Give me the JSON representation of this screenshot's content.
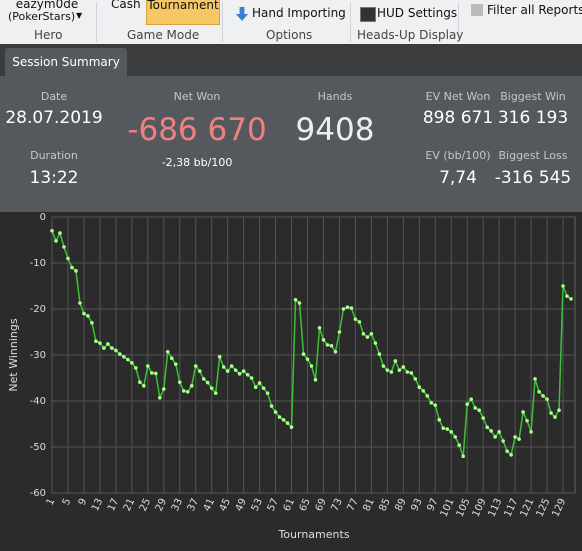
{
  "toolbar": {
    "hero_name": "eazym0de",
    "hero_site": "(PokerStars)",
    "cash": "Cash",
    "tournament": "Tournament",
    "hand_importing": "Hand Importing",
    "hud_settings": "HUD Settings",
    "filter": "Filter all Reports to",
    "groups": [
      "Hero",
      "Game Mode",
      "Options",
      "Heads-Up Display"
    ]
  },
  "tab": "Session Summary",
  "summary": {
    "date_label": "Date",
    "date": "28.07.2019",
    "duration_label": "Duration",
    "duration": "13:22",
    "net_won_label": "Net Won",
    "net_won": "-686 670",
    "bb100": "-2,38 bb/100",
    "hands_label": "Hands",
    "hands": "9408",
    "ev_net_won_label": "EV Net Won",
    "ev_net_won": "898 671",
    "biggest_win_label": "Biggest Win",
    "biggest_win": "316 193",
    "ev_bb100_label": "EV (bb/100)",
    "ev_bb100": "7,74",
    "biggest_loss_label": "Biggest Loss",
    "biggest_loss": "-316 545"
  },
  "chart_data": {
    "type": "line",
    "x_label": "Tournaments",
    "y_label": "Net Winnings",
    "color": "#3fbf3a",
    "marker_color": "#a8ff8a",
    "grid": true,
    "xlim": [
      1,
      132
    ],
    "ylim": [
      -60,
      0
    ],
    "xticks": [
      1,
      5,
      9,
      13,
      17,
      21,
      25,
      29,
      33,
      37,
      41,
      45,
      49,
      53,
      57,
      61,
      65,
      69,
      73,
      77,
      81,
      85,
      89,
      93,
      97,
      101,
      105,
      109,
      113,
      117,
      121,
      125,
      129
    ],
    "yticks": [
      -60,
      -50,
      -40,
      -30,
      -20,
      -10,
      0
    ],
    "x": [
      1,
      2,
      3,
      4,
      5,
      6,
      7,
      8,
      9,
      10,
      11,
      12,
      13,
      14,
      15,
      16,
      17,
      18,
      19,
      20,
      21,
      22,
      23,
      24,
      25,
      26,
      27,
      28,
      29,
      30,
      31,
      32,
      33,
      34,
      35,
      36,
      37,
      38,
      39,
      40,
      41,
      42,
      43,
      44,
      45,
      46,
      47,
      48,
      49,
      50,
      51,
      52,
      53,
      54,
      55,
      56,
      57,
      58,
      59,
      60,
      61,
      62,
      63,
      64,
      65,
      66,
      67,
      68,
      69,
      70,
      71,
      72,
      73,
      74,
      75,
      76,
      77,
      78,
      79,
      80,
      81,
      82,
      83,
      84,
      85,
      86,
      87,
      88,
      89,
      90,
      91,
      92,
      93,
      94,
      95,
      96,
      97,
      98,
      99,
      100,
      101,
      102,
      103,
      104,
      105,
      106,
      107,
      108,
      109,
      110,
      111,
      112,
      113,
      114,
      115,
      116,
      117,
      118,
      119,
      120,
      121,
      122,
      123,
      124,
      125,
      126,
      127,
      128,
      129,
      130,
      131
    ],
    "series": [
      {
        "name": "Net Winnings",
        "values": [
          -3,
          -5.2,
          -3.5,
          -6.5,
          -9,
          -11,
          -11.7,
          -18.7,
          -21,
          -21.5,
          -23,
          -27,
          -27.4,
          -28.5,
          -27.6,
          -28.5,
          -29,
          -29.8,
          -30.4,
          -31,
          -31.7,
          -32.8,
          -35.9,
          -36.7,
          -32.4,
          -33.9,
          -34,
          -39.3,
          -37.4,
          -29.3,
          -30.7,
          -32,
          -35.9,
          -37.8,
          -38,
          -36.7,
          -32.4,
          -33.5,
          -35.2,
          -36,
          -37.2,
          -38.3,
          -30.4,
          -32.6,
          -33.5,
          -32.4,
          -33.3,
          -34.1,
          -33.5,
          -34.3,
          -35,
          -37,
          -36.1,
          -37.2,
          -38.3,
          -41.1,
          -42.4,
          -43.5,
          -44.1,
          -44.8,
          -45.7,
          -18,
          -18.7,
          -29.8,
          -30.9,
          -32.4,
          -35.4,
          -24.1,
          -26.7,
          -27.8,
          -28,
          -29.3,
          -25,
          -20,
          -19.6,
          -19.8,
          -22.2,
          -22.8,
          -25.4,
          -26.1,
          -25.4,
          -27.4,
          -29.8,
          -32.4,
          -33.3,
          -33.7,
          -31.3,
          -33.3,
          -32.6,
          -33.7,
          -33.9,
          -35.2,
          -37,
          -37.8,
          -38.9,
          -40.4,
          -40.9,
          -44.1,
          -45.9,
          -46.1,
          -46.7,
          -47.8,
          -49.6,
          -52,
          -40.7,
          -39.6,
          -41.5,
          -42,
          -43.7,
          -45.7,
          -46.5,
          -47.8,
          -46.7,
          -48.7,
          -50.9,
          -51.7,
          -47.8,
          -48.3,
          -42.4,
          -44.3,
          -46.7,
          -35.2,
          -38,
          -38.9,
          -39.6,
          -42.6,
          -43.5,
          -42,
          -15,
          -17.2,
          -17.8
        ]
      }
    ]
  }
}
